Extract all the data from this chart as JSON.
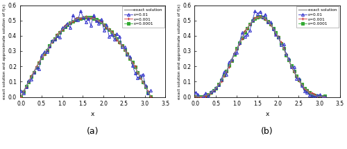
{
  "x_min": 0,
  "x_max": 3.14159265358979,
  "y_min": 0,
  "y_max": 0.6,
  "n_exact": 300,
  "n_approx": 51,
  "xlabel": "x",
  "ylabel": "exact solution and approximate solution of f(x)",
  "label_a": "(a)",
  "label_b": "(b)",
  "legend_exact": "exact solution",
  "legend_eps1": "e=0.01",
  "legend_eps2": "e=0.001",
  "legend_eps3": "e=0.0001",
  "exact_color": "#888888",
  "eps1_color": "#3333cc",
  "eps2_color": "#cc3333",
  "eps3_color": "#33aa33",
  "p_a": 1,
  "p_b": 3,
  "noise_scale_1": 0.022,
  "noise_scale_2": 0.005,
  "noise_scale_3": 0.002,
  "yticks": [
    0.0,
    0.1,
    0.2,
    0.3,
    0.4,
    0.5,
    0.6
  ],
  "xticks": [
    0,
    0.5,
    1.0,
    1.5,
    2.0,
    2.5,
    3.0,
    3.5
  ],
  "peak_val": 0.5227,
  "bg_color": "#f0f0f0"
}
